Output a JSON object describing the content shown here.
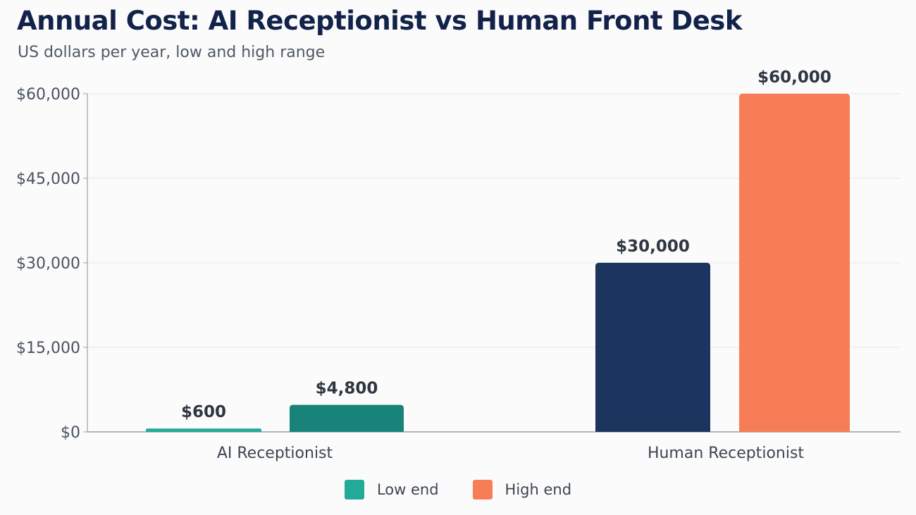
{
  "title": "Annual Cost: AI Receptionist vs Human Front Desk",
  "subtitle": "US dollars per year, low and high range",
  "colors": {
    "ai_low": "#22ab98",
    "ai_high": "#178379",
    "human_low": "#1b355e",
    "human_high": "#f67d55"
  },
  "legend": [
    {
      "label": "Low end",
      "color": "#22ab98"
    },
    {
      "label": "High end",
      "color": "#f67d55"
    }
  ],
  "chart_data": {
    "type": "bar",
    "title": "Annual Cost: AI Receptionist vs Human Front Desk",
    "subtitle": "US dollars per year, low and high range",
    "xlabel": "",
    "ylabel": "",
    "categories": [
      "AI Receptionist",
      "Human Receptionist"
    ],
    "series": [
      {
        "name": "Low end",
        "values": [
          600,
          30000
        ],
        "labels": [
          "$600",
          "$30,000"
        ]
      },
      {
        "name": "High end",
        "values": [
          4800,
          60000
        ],
        "labels": [
          "$4,800",
          "$60,000"
        ]
      }
    ],
    "ylim": [
      0,
      60000
    ],
    "yticks": [
      0,
      15000,
      30000,
      45000,
      60000
    ],
    "ytick_labels": [
      "$0",
      "$15,000",
      "$30,000",
      "$45,000",
      "$60,000"
    ],
    "grid": true,
    "legend_position": "bottom-center"
  }
}
